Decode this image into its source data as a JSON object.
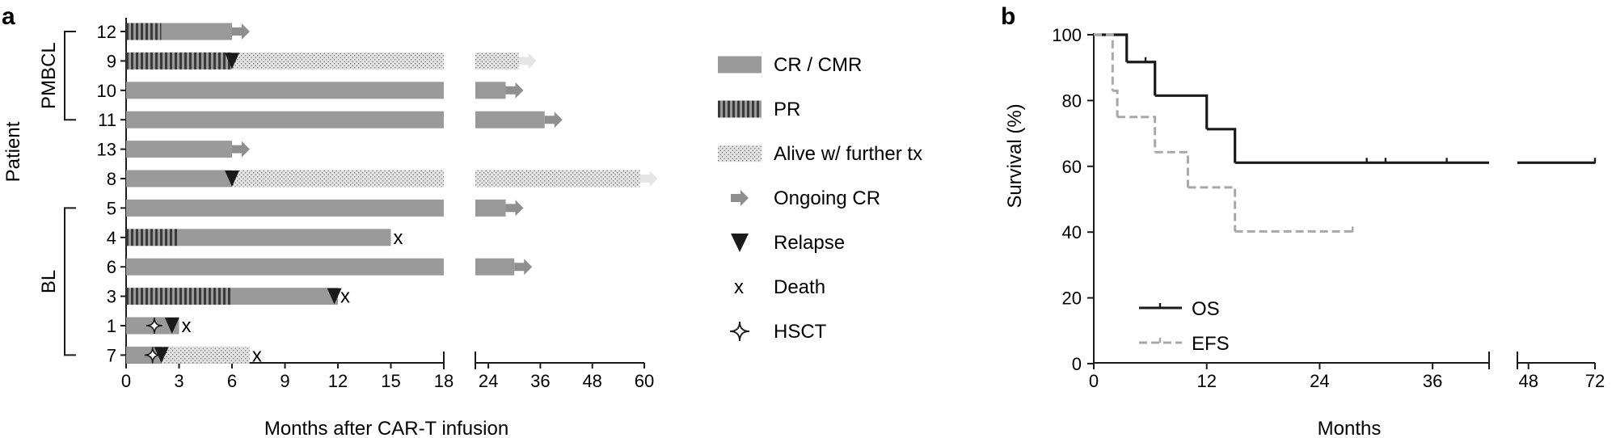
{
  "panel_a": {
    "label": "a",
    "xlabel": "Months after CAR-T infusion",
    "ylabel": "Patient",
    "groups": [
      {
        "name": "PMBCL",
        "first": 0,
        "last": 3
      },
      {
        "name": "BL",
        "first": 6,
        "last": 11
      }
    ],
    "legend": [
      {
        "key": "cr",
        "label": "CR / CMR"
      },
      {
        "key": "pr",
        "label": "PR"
      },
      {
        "key": "alive",
        "label": "Alive w/ further tx"
      },
      {
        "key": "ongoing",
        "label": "Ongoing CR"
      },
      {
        "key": "relapse",
        "label": "Relapse"
      },
      {
        "key": "death",
        "label": "Death"
      },
      {
        "key": "hsct",
        "label": "HSCT"
      }
    ],
    "death_marker": "x",
    "colors": {
      "cr": "#9a9a9a",
      "pr_stripe": "#3a3a3a",
      "alive_dots": "#e4e4e4",
      "arrow": "#8f8f8f",
      "ink": "#1a1a1a"
    }
  },
  "panel_b": {
    "label": "b",
    "xlabel": "Months",
    "ylabel": "Survival (%)",
    "legend": [
      {
        "name": "OS",
        "style": "solid",
        "color": "#1a1a1a"
      },
      {
        "name": "EFS",
        "style": "dashed",
        "color": "#a8a8a8"
      }
    ]
  },
  "chart_data": [
    {
      "type": "swimmer",
      "title": "",
      "xlabel": "Months after CAR-T infusion",
      "ylabel": "Patient",
      "x_segments": [
        {
          "range": [
            0,
            18
          ],
          "ticks": [
            0,
            3,
            6,
            9,
            12,
            15,
            18
          ]
        },
        {
          "range": [
            18,
            60
          ],
          "ticks": [
            24,
            36,
            48,
            60
          ]
        }
      ],
      "patients": [
        {
          "id": "12",
          "group": "PMBCL",
          "segments": [
            {
              "type": "pr",
              "start": 0,
              "end": 2
            },
            {
              "type": "cr",
              "start": 2,
              "end": 6
            }
          ],
          "ongoing": true
        },
        {
          "id": "9",
          "group": "PMBCL",
          "segments": [
            {
              "type": "pr",
              "start": 0,
              "end": 6
            },
            {
              "type": "alive",
              "start": 6,
              "end": 31
            }
          ],
          "relapse": 6,
          "ongoing": true
        },
        {
          "id": "10",
          "group": "PMBCL",
          "segments": [
            {
              "type": "cr",
              "start": 0,
              "end": 28
            }
          ],
          "ongoing": true
        },
        {
          "id": "11",
          "group": "PMBCL",
          "segments": [
            {
              "type": "cr",
              "start": 0,
              "end": 37
            }
          ],
          "ongoing": true
        },
        {
          "id": "13",
          "group": "",
          "segments": [
            {
              "type": "cr",
              "start": 0,
              "end": 6
            }
          ],
          "ongoing": true
        },
        {
          "id": "8",
          "group": "",
          "segments": [
            {
              "type": "cr",
              "start": 0,
              "end": 6
            },
            {
              "type": "alive",
              "start": 6,
              "end": 59
            }
          ],
          "relapse": 6,
          "ongoing": true
        },
        {
          "id": "5",
          "group": "BL",
          "segments": [
            {
              "type": "cr",
              "start": 0,
              "end": 28
            }
          ],
          "ongoing": true
        },
        {
          "id": "4",
          "group": "BL",
          "segments": [
            {
              "type": "pr",
              "start": 0,
              "end": 3
            },
            {
              "type": "cr",
              "start": 3,
              "end": 15
            }
          ],
          "death": 15
        },
        {
          "id": "6",
          "group": "BL",
          "segments": [
            {
              "type": "cr",
              "start": 0,
              "end": 30
            }
          ],
          "ongoing": true
        },
        {
          "id": "3",
          "group": "BL",
          "segments": [
            {
              "type": "pr",
              "start": 0,
              "end": 6
            },
            {
              "type": "cr",
              "start": 6,
              "end": 12
            }
          ],
          "relapse": 11.8,
          "death": 12
        },
        {
          "id": "1",
          "group": "BL",
          "segments": [
            {
              "type": "cr",
              "start": 0,
              "end": 3
            }
          ],
          "hsct": 1.6,
          "relapse": 2.6,
          "death": 3
        },
        {
          "id": "7",
          "group": "BL",
          "segments": [
            {
              "type": "cr",
              "start": 0,
              "end": 2
            },
            {
              "type": "alive",
              "start": 2,
              "end": 7
            }
          ],
          "hsct": 1.5,
          "relapse": 2,
          "death": 7
        }
      ]
    },
    {
      "type": "line",
      "title": "",
      "xlabel": "Months",
      "ylabel": "Survival (%)",
      "ylim": [
        0,
        100
      ],
      "y_ticks": [
        0,
        20,
        40,
        60,
        80,
        100
      ],
      "x_segments": [
        {
          "range": [
            0,
            42
          ],
          "ticks": [
            0,
            12,
            24,
            36
          ]
        },
        {
          "range": [
            42,
            72
          ],
          "ticks": [
            48,
            72
          ]
        }
      ],
      "legend_position": "bottom-left",
      "series": [
        {
          "name": "OS",
          "style": "step-solid",
          "x": [
            0,
            3.5,
            6.5,
            12,
            15,
            72
          ],
          "y": [
            100,
            91.7,
            81.5,
            71.3,
            61.1,
            61.1
          ],
          "censored": [
            [
              5.5,
              91.7
            ],
            [
              29,
              61.1
            ],
            [
              31,
              61.1
            ],
            [
              37.5,
              61.1
            ],
            [
              72,
              61.1
            ]
          ]
        },
        {
          "name": "EFS",
          "style": "step-dashed",
          "x": [
            0,
            2,
            2.5,
            5,
            6.5,
            10,
            15,
            27.5
          ],
          "y": [
            100,
            83,
            75,
            75,
            64.3,
            53.6,
            40.2,
            40.2
          ],
          "censored": [
            [
              27.5,
              40.2
            ]
          ]
        }
      ]
    }
  ]
}
